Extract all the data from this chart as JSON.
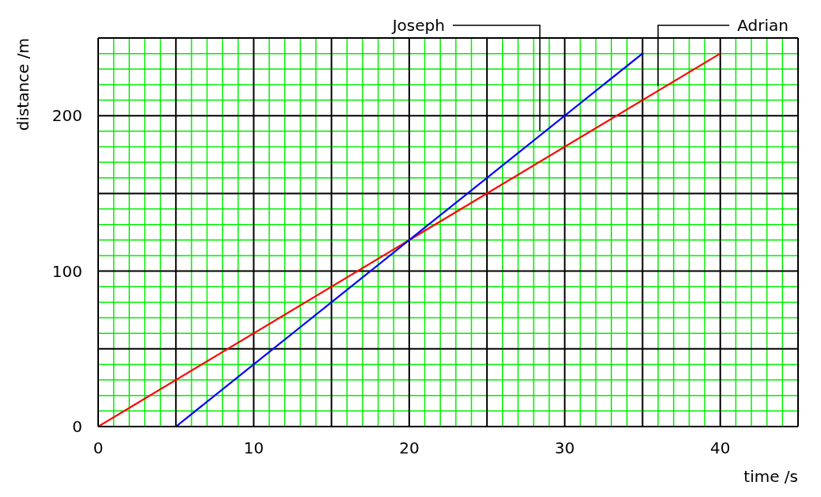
{
  "chart_data": {
    "type": "line",
    "xlabel": "time /s",
    "ylabel": "distance /m",
    "series": [
      {
        "name": "Adrian",
        "color": "#ff0000",
        "x": [
          0,
          40
        ],
        "values": [
          0,
          240
        ]
      },
      {
        "name": "Joseph",
        "color": "#0000ff",
        "x": [
          5,
          35
        ],
        "values": [
          0,
          240
        ]
      }
    ],
    "xlim": [
      0,
      45
    ],
    "ylim": [
      0,
      250
    ],
    "xticks": [
      0,
      {
        "value": 1,
        "label": null
      },
      {
        "value": 2,
        "label": null
      },
      {
        "value": 3,
        "label": null
      },
      {
        "value": 4,
        "label": null
      },
      {
        "value": 5,
        "label": null
      },
      {
        "value": 6,
        "label": null
      },
      {
        "value": 7,
        "label": null
      },
      {
        "value": 8,
        "label": null
      },
      {
        "value": 9,
        "label": null
      },
      10,
      {
        "value": 11,
        "label": null
      },
      {
        "value": 12,
        "label": null
      },
      {
        "value": 13,
        "label": null
      },
      {
        "value": 14,
        "label": null
      },
      {
        "value": 15,
        "label": null
      },
      {
        "value": 16,
        "label": null
      },
      {
        "value": 17,
        "label": null
      },
      {
        "value": 18,
        "label": null
      },
      {
        "value": 19,
        "label": null
      },
      20,
      {
        "value": 21,
        "label": null
      },
      {
        "value": 22,
        "label": null
      },
      {
        "value": 23,
        "label": null
      },
      {
        "value": 24,
        "label": null
      },
      {
        "value": 25,
        "label": null
      },
      {
        "value": 26,
        "label": null
      },
      {
        "value": 27,
        "label": null
      },
      {
        "value": 28,
        "label": null
      },
      {
        "value": 29,
        "label": null
      },
      30,
      {
        "value": 31,
        "label": null
      },
      {
        "value": 32,
        "label": null
      },
      {
        "value": 33,
        "label": null
      },
      {
        "value": 34,
        "label": null
      },
      {
        "value": 35,
        "label": null
      },
      {
        "value": 36,
        "label": null
      },
      {
        "value": 37,
        "label": null
      },
      {
        "value": 38,
        "label": null
      },
      {
        "value": 39,
        "label": null
      },
      40,
      {
        "value": 41,
        "label": null
      },
      {
        "value": 42,
        "label": null
      },
      {
        "value": 43,
        "label": null
      },
      {
        "value": 44,
        "label": null
      },
      {
        "value": 45,
        "label": null
      }
    ],
    "yticks": [
      0,
      {
        "value": 10,
        "label": null
      },
      {
        "value": 20,
        "label": null
      },
      {
        "value": 30,
        "label": null
      },
      {
        "value": 40,
        "label": null
      },
      {
        "value": 50,
        "label": null
      },
      {
        "value": 60,
        "label": null
      },
      {
        "value": 70,
        "label": null
      },
      {
        "value": 80,
        "label": null
      },
      {
        "value": 90,
        "label": null
      },
      100,
      {
        "value": 110,
        "label": null
      },
      {
        "value": 120,
        "label": null
      },
      {
        "value": 130,
        "label": null
      },
      {
        "value": 140,
        "label": null
      },
      {
        "value": 150,
        "label": null
      },
      {
        "value": 160,
        "label": null
      },
      {
        "value": 170,
        "label": null
      },
      {
        "value": 180,
        "label": null
      },
      {
        "value": 190,
        "label": null
      },
      200,
      {
        "value": 210,
        "label": null
      },
      {
        "value": 220,
        "label": null
      },
      {
        "value": 230,
        "label": null
      },
      {
        "value": 240,
        "label": null
      },
      {
        "value": 250,
        "label": null
      }
    ],
    "grid": true,
    "legend": false,
    "marker": "none",
    "line_style": "solid"
  }
}
